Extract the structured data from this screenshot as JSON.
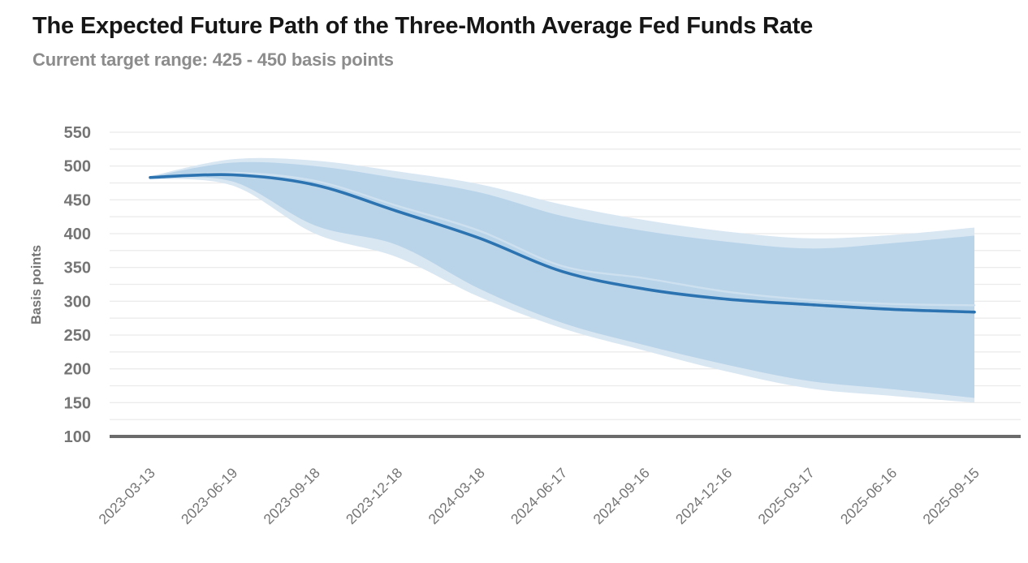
{
  "chart_data": {
    "type": "line",
    "title": "The Expected Future Path of the Three-Month Average Fed Funds Rate",
    "subtitle": "Current target range: 425 - 450 basis points",
    "ylabel": "Basis points",
    "ylim": [
      100,
      550
    ],
    "y_ticks": [
      550,
      500,
      450,
      400,
      350,
      300,
      250,
      200,
      150,
      100
    ],
    "y_grid_step": 25,
    "grid_on": true,
    "legend": "none",
    "x": [
      "2023-03-13",
      "2023-06-19",
      "2023-09-18",
      "2023-12-18",
      "2024-03-18",
      "2024-06-17",
      "2024-09-16",
      "2024-12-16",
      "2025-03-17",
      "2025-06-16",
      "2025-09-15"
    ],
    "series": [
      {
        "name": "expected-median-path",
        "values": [
          483,
          487,
          472,
          433,
          393,
          344,
          318,
          303,
          295,
          288,
          284
        ],
        "color": "#2b73b1",
        "width": 3.6
      },
      {
        "name": "secondary-path",
        "values": [
          483,
          490,
          478,
          441,
          404,
          352,
          334,
          314,
          302,
          296,
          294
        ],
        "color": "#cde0ef",
        "width": 2.4
      }
    ],
    "bands": [
      {
        "name": "outer-band",
        "upper": [
          485,
          510,
          508,
          492,
          473,
          443,
          420,
          403,
          393,
          398,
          409
        ],
        "lower": [
          481,
          471,
          400,
          365,
          306,
          260,
          227,
          196,
          171,
          160,
          150
        ],
        "color": "#d9e7f3"
      },
      {
        "name": "inner-band",
        "upper": [
          484,
          505,
          500,
          482,
          461,
          426,
          404,
          388,
          378,
          386,
          397
        ],
        "lower": [
          482,
          477,
          412,
          383,
          318,
          268,
          235,
          206,
          182,
          170,
          157
        ],
        "color": "#b9d4e9"
      }
    ],
    "colors": {
      "grid": "#ebebeb",
      "axis_line": "#6b6b6b",
      "tick_label": "#757575",
      "title": "#161616",
      "subtitle": "#8c8c8c"
    }
  }
}
